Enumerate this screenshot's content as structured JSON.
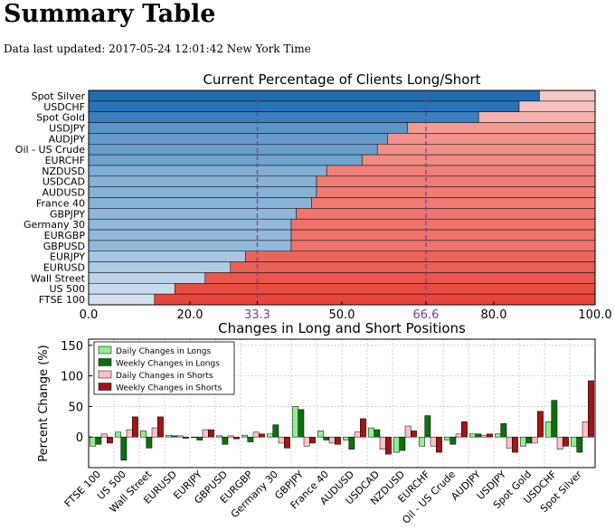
{
  "page": {
    "title": "Summary Table",
    "updated": "Data last updated: 2017-05-24 12:01:42 New York Time"
  },
  "chart_data": [
    {
      "type": "bar",
      "orientation": "horizontal",
      "stacked": true,
      "title": "Current Percentage of Clients Long/Short",
      "categories": [
        "Spot Silver",
        "USDCHF",
        "Spot Gold",
        "USDJPY",
        "AUDJPY",
        "Oil - US Crude",
        "EURCHF",
        "NZDUSD",
        "USDCAD",
        "AUDUSD",
        "France 40",
        "GBPJPY",
        "Germany 30",
        "EURGBP",
        "GBPUSD",
        "EURJPY",
        "EURUSD",
        "Wall Street",
        "US 500",
        "FTSE 100"
      ],
      "long_pct": [
        89,
        85,
        77,
        63,
        59,
        57,
        54,
        47,
        45,
        45,
        44,
        41,
        40,
        40,
        40,
        31,
        28,
        23,
        17,
        13
      ],
      "xlim": [
        0,
        100
      ],
      "xticks": [
        "0.0",
        "20.0",
        "33.3",
        "50.0",
        "66.6",
        "80.0",
        "100.0"
      ],
      "reference_lines": [
        33.3,
        66.6
      ],
      "colors": {
        "long": "#1f6db3",
        "short": "#e8463a",
        "reference": "#7a3d9e"
      },
      "grid": false,
      "legend": "none"
    },
    {
      "type": "bar",
      "title": "Changes in Long and Short Positions",
      "ylabel": "Percent Change (%)",
      "ylim": [
        -50,
        160
      ],
      "yticks": [
        "150",
        "100",
        "50",
        "0"
      ],
      "categories": [
        "FTSE 100",
        "US 500",
        "Wall Street",
        "EURUSD",
        "EURJPY",
        "GBPUSD",
        "EURGBP",
        "Germany 30",
        "GBPJPY",
        "France 40",
        "AUDUSD",
        "USDCAD",
        "NZDUSD",
        "EURCHF",
        "Oil - US Crude",
        "AUDJPY",
        "USDJPY",
        "Spot Gold",
        "USDCHF",
        "Spot Silver"
      ],
      "series": [
        {
          "name": "Daily Changes in Longs",
          "color": "#90ee90",
          "values": [
            -15,
            8,
            10,
            3,
            0,
            2,
            3,
            5,
            50,
            10,
            -5,
            15,
            -25,
            -15,
            -5,
            5,
            5,
            -15,
            25,
            -15
          ]
        },
        {
          "name": "Weekly Changes in Longs",
          "color": "#0d6e0d",
          "values": [
            -12,
            -38,
            -18,
            2,
            -5,
            -12,
            -8,
            20,
            45,
            -5,
            -20,
            12,
            -22,
            35,
            -12,
            5,
            22,
            -10,
            60,
            -25
          ]
        },
        {
          "name": "Daily Changes in Shorts",
          "color": "#ffc0cb",
          "values": [
            5,
            12,
            15,
            2,
            12,
            2,
            8,
            -10,
            -15,
            -10,
            8,
            -20,
            18,
            -15,
            5,
            3,
            -18,
            -10,
            -20,
            25
          ]
        },
        {
          "name": "Weekly Changes in Shorts",
          "color": "#a01515",
          "values": [
            -10,
            33,
            33,
            -2,
            12,
            -3,
            5,
            -18,
            -10,
            -12,
            30,
            -28,
            10,
            -25,
            25,
            5,
            -25,
            42,
            -15,
            92
          ]
        }
      ],
      "grid": true,
      "legend": "upper-left"
    }
  ]
}
